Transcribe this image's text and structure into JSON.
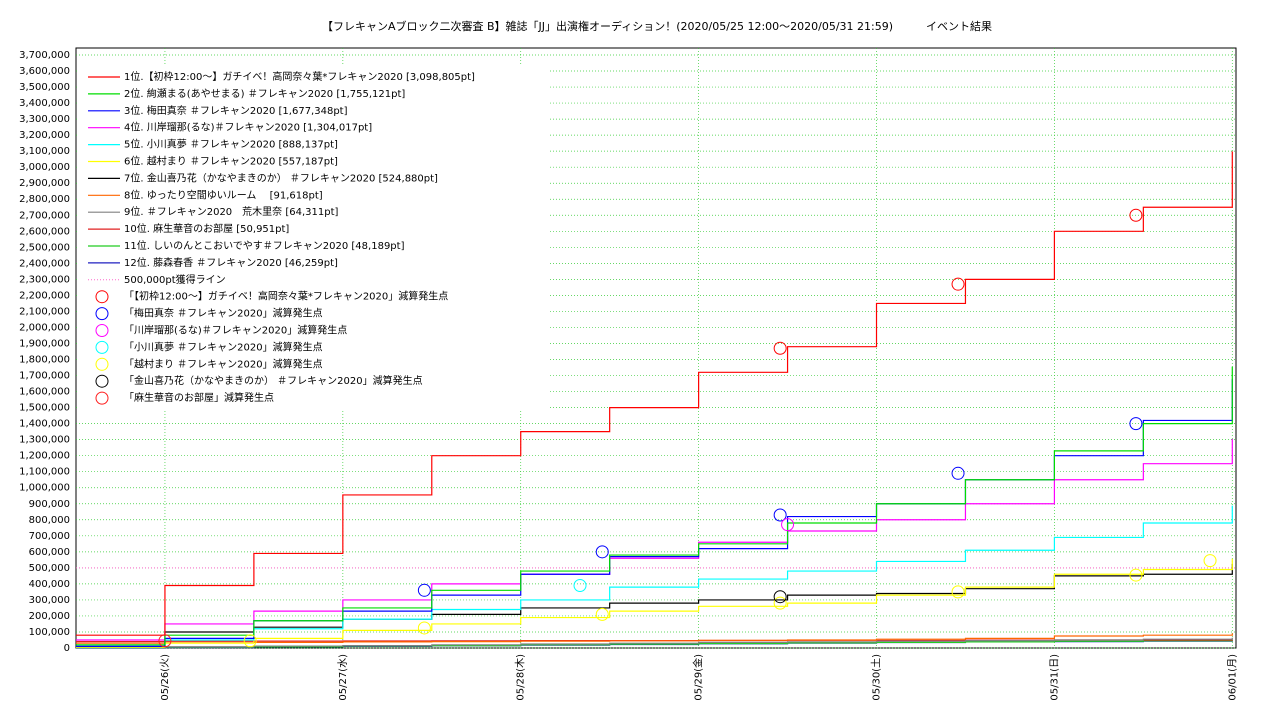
{
  "chart_data": {
    "type": "step-line",
    "title": "【フレキャンAブロック二次審査 B】雑誌「JJ」出演権オーディション！(2020/05/25 12:00〜2020/05/31 21:59)　　　イベント結果",
    "x": [
      0,
      12,
      24,
      36,
      48,
      60,
      72,
      84,
      96,
      108,
      120,
      132,
      144,
      156
    ],
    "xlim": [
      0,
      156.5
    ],
    "xticks": [
      {
        "value": 12,
        "label": "05/26(火)"
      },
      {
        "value": 36,
        "label": "05/27(水)"
      },
      {
        "value": 60,
        "label": "05/28(木)"
      },
      {
        "value": 84,
        "label": "05/29(金)"
      },
      {
        "value": 108,
        "label": "05/30(土)"
      },
      {
        "value": 132,
        "label": "05/31(日)"
      },
      {
        "value": 156,
        "label": "06/01(月)"
      }
    ],
    "ylim": [
      0,
      3700000
    ],
    "yticks": [
      0,
      {
        "value": 100000,
        "label": "100,000"
      },
      {
        "value": 200000,
        "label": "200,000"
      },
      {
        "value": 300000,
        "label": "300,000"
      },
      {
        "value": 400000,
        "label": "400,000"
      },
      {
        "value": 500000,
        "label": "500,000"
      },
      {
        "value": 600000,
        "label": "600,000"
      },
      {
        "value": 700000,
        "label": "700,000"
      },
      {
        "value": 800000,
        "label": "800,000"
      },
      {
        "value": 900000,
        "label": "900,000"
      },
      {
        "value": 1000000,
        "label": "1,000,000"
      },
      {
        "value": 1100000,
        "label": "1,100,000"
      },
      {
        "value": 1200000,
        "label": "1,200,000"
      },
      {
        "value": 1300000,
        "label": "1,300,000"
      },
      {
        "value": 1400000,
        "label": "1,400,000"
      },
      {
        "value": 1500000,
        "label": "1,500,000"
      },
      {
        "value": 1600000,
        "label": "1,600,000"
      },
      {
        "value": 1700000,
        "label": "1,700,000"
      },
      {
        "value": 1800000,
        "label": "1,800,000"
      },
      {
        "value": 1900000,
        "label": "1,900,000"
      },
      {
        "value": 2000000,
        "label": "2,000,000"
      },
      {
        "value": 2100000,
        "label": "2,100,000"
      },
      {
        "value": 2200000,
        "label": "2,200,000"
      },
      {
        "value": 2300000,
        "label": "2,300,000"
      },
      {
        "value": 2400000,
        "label": "2,400,000"
      },
      {
        "value": 2500000,
        "label": "2,500,000"
      },
      {
        "value": 2600000,
        "label": "2,600,000"
      },
      {
        "value": 2700000,
        "label": "2,700,000"
      },
      {
        "value": 2800000,
        "label": "2,800,000"
      },
      {
        "value": 2900000,
        "label": "2,900,000"
      },
      {
        "value": 3000000,
        "label": "3,000,000"
      },
      {
        "value": 3100000,
        "label": "3,100,000"
      },
      {
        "value": 3200000,
        "label": "3,200,000"
      },
      {
        "value": 3300000,
        "label": "3,300,000"
      },
      {
        "value": 3400000,
        "label": "3,400,000"
      },
      {
        "value": 3500000,
        "label": "3,500,000"
      },
      {
        "value": 3600000,
        "label": "3,600,000"
      },
      {
        "value": 3700000,
        "label": "3,700,000"
      }
    ],
    "grid": true,
    "grid_color": "#33cc33",
    "series": [
      {
        "name": "1位.【初枠12:00〜】ガチイベ！高岡奈々葉*フレキャン2020 [3,098,805pt]",
        "color": "#ff0000",
        "values": [
          80000,
          390000,
          590000,
          955000,
          1200000,
          1350000,
          1500000,
          1720000,
          1880000,
          2150000,
          2300000,
          2600000,
          2750000,
          3098805
        ]
      },
      {
        "name": "2位. 絢瀬まる(あやせまる) ＃フレキャン2020 [1,755,121pt]",
        "color": "#00dd00",
        "values": [
          20000,
          80000,
          170000,
          250000,
          360000,
          480000,
          580000,
          650000,
          780000,
          900000,
          1050000,
          1230000,
          1400000,
          1755121
        ]
      },
      {
        "name": "3位. 梅田真奈 ＃フレキャン2020 [1,677,348pt]",
        "color": "#0000ff",
        "values": [
          10000,
          60000,
          170000,
          230000,
          330000,
          460000,
          570000,
          620000,
          820000,
          900000,
          1050000,
          1200000,
          1420000,
          1677348
        ]
      },
      {
        "name": "4位. 川岸瑠那(るな)＃フレキャン2020 [1,304,017pt]",
        "color": "#ff00ff",
        "values": [
          50000,
          150000,
          230000,
          300000,
          400000,
          460000,
          560000,
          660000,
          730000,
          800000,
          900000,
          1050000,
          1150000,
          1304017
        ]
      },
      {
        "name": "5位. 小川真夢 ＃フレキャン2020 [888,137pt]",
        "color": "#00ffff",
        "values": [
          10000,
          50000,
          120000,
          180000,
          240000,
          300000,
          380000,
          430000,
          480000,
          540000,
          610000,
          690000,
          780000,
          888137
        ]
      },
      {
        "name": "6位. 越村まり ＃フレキャン2020 [557,187pt]",
        "color": "#ffff00",
        "values": [
          5000,
          30000,
          60000,
          110000,
          150000,
          190000,
          230000,
          260000,
          280000,
          330000,
          380000,
          460000,
          490000,
          557187
        ]
      },
      {
        "name": "7位. 金山喜乃花（かなやまきのか） ＃フレキャン2020 [524,880pt]",
        "color": "#000000",
        "values": [
          10000,
          100000,
          130000,
          180000,
          210000,
          250000,
          280000,
          300000,
          330000,
          340000,
          370000,
          450000,
          460000,
          524880
        ]
      },
      {
        "name": "8位. ゆったり空間ゆいルーム　 [91,618pt]",
        "color": "#ff6600",
        "values": [
          30000,
          32000,
          35000,
          38000,
          40000,
          43000,
          45000,
          48000,
          50000,
          55000,
          60000,
          75000,
          80000,
          91618
        ]
      },
      {
        "name": "9位. ＃フレキャン2020　荒木里奈 [64,311pt]",
        "color": "#808080",
        "values": [
          5000,
          8000,
          12000,
          15000,
          20000,
          25000,
          30000,
          35000,
          38000,
          42000,
          46000,
          50000,
          55000,
          64311
        ]
      },
      {
        "name": "10位. 麻生華音のお部屋 [50,951pt]",
        "color": "#e02020",
        "values": [
          40000,
          42000,
          43000,
          44000,
          45000,
          46000,
          46000,
          47000,
          48000,
          48000,
          49000,
          50000,
          50000,
          50951
        ]
      },
      {
        "name": "11位. しいのんとこおいでやす＃フレキャン2020 [48,189pt]",
        "color": "#22cc22",
        "values": [
          2000,
          5000,
          8000,
          12000,
          15000,
          20000,
          24000,
          28000,
          32000,
          35000,
          38000,
          42000,
          45000,
          48189
        ]
      },
      {
        "name": "12位. 藤森春香 ＃フレキャン2020 [46,259pt]",
        "color": "#2020c0",
        "values": [
          0,
          3000,
          6000,
          10000,
          14000,
          18000,
          22000,
          26000,
          30000,
          34000,
          38000,
          40000,
          43000,
          46259
        ]
      }
    ],
    "threshold": {
      "name": "500,000pt獲得ライン",
      "value": 500000,
      "color": "#ff66cc"
    },
    "markers": [
      {
        "name": "「【初枠12:00〜】ガチイベ！高岡奈々葉*フレキャン2020」減算発生点",
        "color": "#ff0000",
        "x": [
          95,
          119,
          143
        ],
        "values": [
          1870000,
          2270000,
          2700000
        ]
      },
      {
        "name": "「梅田真奈 ＃フレキャン2020」減算発生点",
        "color": "#0000ff",
        "x": [
          47,
          71,
          95,
          119,
          143
        ],
        "values": [
          360000,
          600000,
          830000,
          1090000,
          1400000
        ]
      },
      {
        "name": "「川岸瑠那(るな)＃フレキャン2020」減算発生点",
        "color": "#ff00ff",
        "x": [
          96
        ],
        "values": [
          770000
        ]
      },
      {
        "name": "「小川真夢 ＃フレキャン2020」減算発生点",
        "color": "#00ffff",
        "x": [
          68
        ],
        "values": [
          390000
        ]
      },
      {
        "name": "「越村まり ＃フレキャン2020」減算発生点",
        "color": "#ffff00",
        "x": [
          23.5,
          47,
          71,
          95,
          119,
          143,
          153
        ],
        "values": [
          45000,
          125000,
          210000,
          280000,
          350000,
          455000,
          545000
        ]
      },
      {
        "name": "「金山喜乃花（かなやまきのか） ＃フレキャン2020」減算発生点",
        "color": "#000000",
        "x": [
          95
        ],
        "values": [
          320000
        ]
      },
      {
        "name": "「麻生華音のお部屋」減算発生点",
        "color": "#ff2020",
        "x": [
          12
        ],
        "values": [
          45000
        ]
      }
    ]
  }
}
